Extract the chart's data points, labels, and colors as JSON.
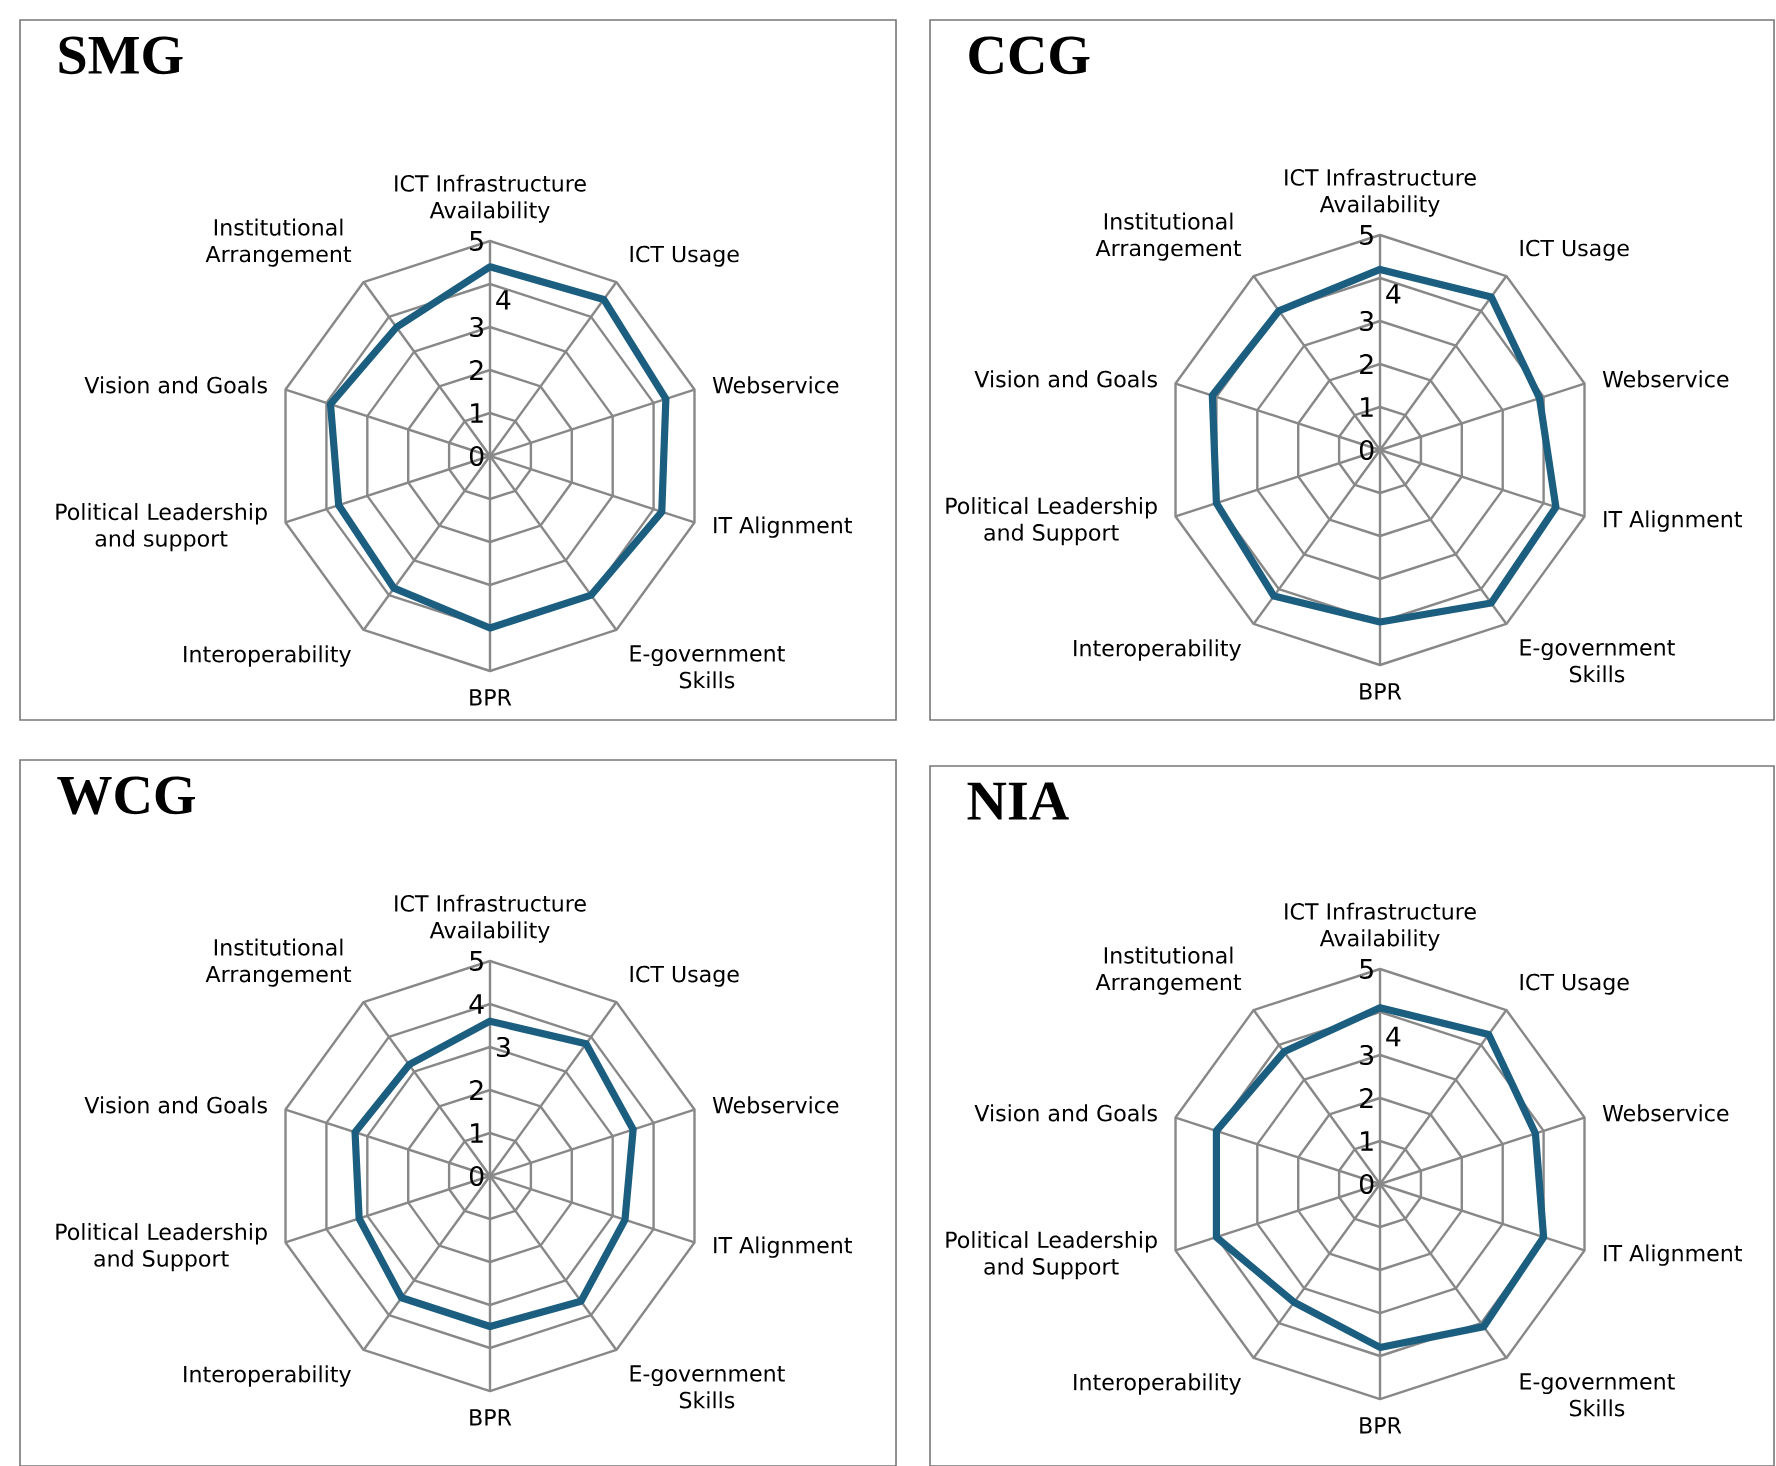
{
  "chart_data": [
    {
      "type": "radar",
      "title": "SMG",
      "categories": [
        "ICT Infrastructure Availability",
        "ICT Usage",
        "Webservice",
        "IT Alignment",
        "E-government Skills",
        "BPR",
        "Interoperability",
        "Political Leadership and support",
        "Vision and Goals",
        "Institutional Arrangement"
      ],
      "series": [
        {
          "color": "#1b5e7f",
          "values": [
            4.4,
            4.5,
            4.3,
            4.2,
            4.0,
            4.0,
            3.8,
            3.7,
            3.9,
            3.7
          ]
        }
      ],
      "ylim": [
        0,
        5
      ],
      "yticks": [
        0,
        1,
        2,
        3,
        4,
        5
      ],
      "grid": true
    },
    {
      "type": "radar",
      "title": "CCG",
      "categories": [
        "ICT Infrastructure Availability",
        "ICT Usage",
        "Webservice",
        "IT Alignment",
        "E-government Skills",
        "BPR",
        "Interoperability",
        "Political Leadership and Support",
        "Vision and Goals",
        "Institutional Arrangement"
      ],
      "series": [
        {
          "color": "#1b5e7f",
          "values": [
            4.2,
            4.4,
            3.9,
            4.3,
            4.4,
            4.0,
            4.2,
            4.0,
            4.1,
            4.0
          ]
        }
      ],
      "ylim": [
        0,
        5
      ],
      "yticks": [
        0,
        1,
        2,
        3,
        4,
        5
      ],
      "grid": true
    },
    {
      "type": "radar",
      "title": "WCG",
      "categories": [
        "ICT Infrastructure Availability",
        "ICT Usage",
        "Webservice",
        "IT Alignment",
        "E-government Skills",
        "BPR",
        "Interoperability",
        "Political Leadership and Support",
        "Vision and Goals",
        "Institutional Arrangement"
      ],
      "series": [
        {
          "color": "#1b5e7f",
          "values": [
            3.6,
            3.8,
            3.5,
            3.3,
            3.6,
            3.5,
            3.5,
            3.2,
            3.3,
            3.2
          ]
        }
      ],
      "ylim": [
        0,
        5
      ],
      "yticks": [
        0,
        1,
        2,
        3,
        4,
        5
      ],
      "grid": true
    },
    {
      "type": "radar",
      "title": "NIA",
      "categories": [
        "ICT Infrastructure Availability",
        "ICT Usage",
        "Webservice",
        "IT Alignment",
        "E-government Skills",
        "BPR",
        "Interoperability",
        "Political Leadership and Support",
        "Vision and Goals",
        "Institutional Arrangement"
      ],
      "series": [
        {
          "color": "#1b5e7f",
          "values": [
            4.1,
            4.3,
            3.8,
            4.0,
            4.1,
            3.8,
            3.4,
            4.0,
            4.0,
            3.8
          ]
        }
      ],
      "ylim": [
        0,
        5
      ],
      "yticks": [
        0,
        1,
        2,
        3,
        4,
        5
      ],
      "grid": true
    }
  ]
}
